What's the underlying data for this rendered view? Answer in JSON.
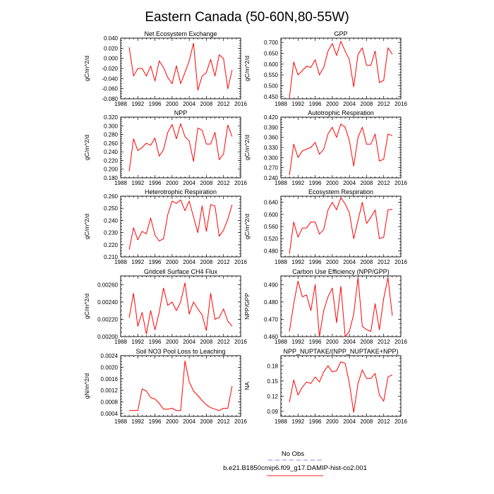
{
  "title": "Eastern Canada (50-60N,80-55W)",
  "legend": {
    "items": [
      {
        "label": "No Obs",
        "color": "#9aa0f0",
        "dash": true
      },
      {
        "label": "b.e21.B1850cmip6.f09_g17.DAMIP-hist-co2.001",
        "color": "#f05050",
        "dash": false
      }
    ]
  },
  "colors": {
    "series": "#ff0000",
    "axis": "#000000"
  },
  "chart_data": [
    {
      "type": "line",
      "title": "Net Ecosystem Exchange",
      "ylabel": "gC/m^2/d",
      "xlim": [
        1988,
        2016
      ],
      "xticks": [
        "1988",
        "1992",
        "1996",
        "2000",
        "2004",
        "2008",
        "2012",
        "2016"
      ],
      "ylim": [
        -0.08,
        0.04
      ],
      "yticks": [
        "-0.080",
        "-0.060",
        "-0.040",
        "-0.020",
        "0.000",
        "0.020",
        "0.040"
      ],
      "x": [
        1990,
        1991,
        1992,
        1993,
        1994,
        1995,
        1996,
        1997,
        1998,
        1999,
        2000,
        2001,
        2002,
        2003,
        2004,
        2005,
        2006,
        2007,
        2008,
        2009,
        2010,
        2011,
        2012,
        2013,
        2014
      ],
      "values": [
        0.022,
        -0.035,
        -0.02,
        -0.02,
        -0.035,
        -0.015,
        -0.045,
        -0.005,
        -0.018,
        -0.038,
        -0.05,
        -0.015,
        -0.05,
        -0.028,
        -0.005,
        0.03,
        -0.063,
        -0.035,
        -0.028,
        -0.002,
        -0.035,
        0.007,
        0.0,
        -0.06,
        -0.023
      ]
    },
    {
      "type": "line",
      "title": "GPP",
      "ylabel": "gC/m^2/d",
      "xlim": [
        1988,
        2016
      ],
      "xticks": [
        "1988",
        "1992",
        "1996",
        "2000",
        "2004",
        "2008",
        "2012",
        "2016"
      ],
      "ylim": [
        0.44,
        0.72
      ],
      "yticks": [
        "0.450",
        "0.500",
        "0.550",
        "0.600",
        "0.650",
        "0.700"
      ],
      "x": [
        1990,
        1991,
        1992,
        1993,
        1994,
        1995,
        1996,
        1997,
        1998,
        1999,
        2000,
        2001,
        2002,
        2003,
        2004,
        2005,
        2006,
        2007,
        2008,
        2009,
        2010,
        2011,
        2012,
        2013,
        2014
      ],
      "values": [
        0.445,
        0.61,
        0.55,
        0.57,
        0.59,
        0.585,
        0.62,
        0.55,
        0.585,
        0.66,
        0.695,
        0.64,
        0.705,
        0.66,
        0.62,
        0.495,
        0.645,
        0.675,
        0.595,
        0.595,
        0.66,
        0.515,
        0.525,
        0.675,
        0.645
      ]
    },
    {
      "type": "line",
      "title": "NPP",
      "ylabel": "gC/m^2/d",
      "xlim": [
        1988,
        2016
      ],
      "xticks": [
        "1988",
        "1992",
        "1996",
        "2000",
        "2004",
        "2008",
        "2012",
        "2016"
      ],
      "ylim": [
        0.18,
        0.32
      ],
      "yticks": [
        "0.180",
        "0.200",
        "0.220",
        "0.240",
        "0.260",
        "0.280",
        "0.300",
        "0.320"
      ],
      "x": [
        1990,
        1991,
        1992,
        1993,
        1994,
        1995,
        1996,
        1997,
        1998,
        1999,
        2000,
        2001,
        2002,
        2003,
        2004,
        2005,
        2006,
        2007,
        2008,
        2009,
        2010,
        2011,
        2012,
        2013,
        2014
      ],
      "values": [
        0.195,
        0.27,
        0.243,
        0.25,
        0.26,
        0.255,
        0.272,
        0.23,
        0.245,
        0.285,
        0.303,
        0.27,
        0.305,
        0.275,
        0.265,
        0.218,
        0.295,
        0.29,
        0.258,
        0.258,
        0.285,
        0.222,
        0.235,
        0.302,
        0.275
      ]
    },
    {
      "type": "line",
      "title": "Autotrophic Respiration",
      "ylabel": "gC/m^2/d",
      "xlim": [
        1988,
        2016
      ],
      "xticks": [
        "1988",
        "1992",
        "1996",
        "2000",
        "2004",
        "2008",
        "2012",
        "2016"
      ],
      "ylim": [
        0.24,
        0.42
      ],
      "yticks": [
        "0.240",
        "0.270",
        "0.300",
        "0.330",
        "0.360",
        "0.390",
        "0.420"
      ],
      "x": [
        1990,
        1991,
        1992,
        1993,
        1994,
        1995,
        1996,
        1997,
        1998,
        1999,
        2000,
        2001,
        2002,
        2003,
        2004,
        2005,
        2006,
        2007,
        2008,
        2009,
        2010,
        2011,
        2012,
        2013,
        2014
      ],
      "values": [
        0.248,
        0.34,
        0.3,
        0.32,
        0.325,
        0.33,
        0.345,
        0.31,
        0.325,
        0.37,
        0.39,
        0.36,
        0.4,
        0.39,
        0.35,
        0.275,
        0.36,
        0.39,
        0.34,
        0.34,
        0.37,
        0.29,
        0.295,
        0.37,
        0.365
      ]
    },
    {
      "type": "line",
      "title": "Heterotrophic Respiration",
      "ylabel": "gC/m^2/d",
      "xlim": [
        1988,
        2016
      ],
      "xticks": [
        "1988",
        "1992",
        "1996",
        "2000",
        "2004",
        "2008",
        "2012",
        "2016"
      ],
      "ylim": [
        0.21,
        0.26
      ],
      "yticks": [
        "0.210",
        "0.220",
        "0.230",
        "0.240",
        "0.250",
        "0.260"
      ],
      "x": [
        1990,
        1991,
        1992,
        1993,
        1994,
        1995,
        1996,
        1997,
        1998,
        1999,
        2000,
        2001,
        2002,
        2003,
        2004,
        2005,
        2006,
        2007,
        2008,
        2009,
        2010,
        2011,
        2012,
        2013,
        2014
      ],
      "values": [
        0.216,
        0.234,
        0.224,
        0.231,
        0.229,
        0.242,
        0.228,
        0.223,
        0.225,
        0.245,
        0.256,
        0.254,
        0.257,
        0.248,
        0.256,
        0.243,
        0.23,
        0.252,
        0.231,
        0.253,
        0.252,
        0.227,
        0.232,
        0.241,
        0.253
      ]
    },
    {
      "type": "line",
      "title": "Ecosystem Respiration",
      "ylabel": "gC/m^2/d",
      "xlim": [
        1988,
        2016
      ],
      "xticks": [
        "1988",
        "1992",
        "1996",
        "2000",
        "2004",
        "2008",
        "2012",
        "2016"
      ],
      "ylim": [
        0.46,
        0.66
      ],
      "yticks": [
        "0.480",
        "0.520",
        "0.560",
        "0.600",
        "0.640"
      ],
      "x": [
        1990,
        1991,
        1992,
        1993,
        1994,
        1995,
        1996,
        1997,
        1998,
        1999,
        2000,
        2001,
        2002,
        2003,
        2004,
        2005,
        2006,
        2007,
        2008,
        2009,
        2010,
        2011,
        2012,
        2013,
        2014
      ],
      "values": [
        0.47,
        0.575,
        0.525,
        0.555,
        0.555,
        0.575,
        0.575,
        0.535,
        0.55,
        0.615,
        0.64,
        0.615,
        0.655,
        0.635,
        0.605,
        0.52,
        0.58,
        0.64,
        0.57,
        0.59,
        0.615,
        0.52,
        0.525,
        0.615,
        0.617
      ]
    },
    {
      "type": "line",
      "title": "Gridcell Surface CH4 Flux",
      "ylabel": "gC/m^2/d",
      "xlim": [
        1988,
        2016
      ],
      "xticks": [
        "1988",
        "1992",
        "1996",
        "2000",
        "2004",
        "2008",
        "2012",
        "2016"
      ],
      "ylim": [
        0.002,
        0.0027
      ],
      "yticks": [
        "0.00200",
        "0.00220",
        "0.00240",
        "0.00260"
      ],
      "x": [
        1990,
        1991,
        1992,
        1993,
        1994,
        1995,
        1996,
        1997,
        1998,
        1999,
        2000,
        2001,
        2002,
        2003,
        2004,
        2005,
        2006,
        2007,
        2008,
        2009,
        2010,
        2011,
        2012,
        2013,
        2014
      ],
      "values": [
        0.00222,
        0.0025,
        0.00212,
        0.00228,
        0.00203,
        0.0023,
        0.00208,
        0.00228,
        0.00256,
        0.00236,
        0.0024,
        0.0023,
        0.0024,
        0.00262,
        0.00226,
        0.0024,
        0.00232,
        0.00225,
        0.00207,
        0.0025,
        0.0022,
        0.00222,
        0.00232,
        0.00218,
        0.00212
      ]
    },
    {
      "type": "line",
      "title": "Carbon Use Efficiency (NPP/GPP)",
      "ylabel": "NPP/GPP",
      "xlim": [
        1988,
        2016
      ],
      "xticks": [
        "1988",
        "1992",
        "1996",
        "2000",
        "2004",
        "2008",
        "2012",
        "2016"
      ],
      "ylim": [
        0.46,
        0.495
      ],
      "yticks": [
        "0.460",
        "0.470",
        "0.480",
        "0.490"
      ],
      "x": [
        1990,
        1991,
        1992,
        1993,
        1994,
        1995,
        1996,
        1997,
        1998,
        1999,
        2000,
        2001,
        2002,
        2003,
        2004,
        2005,
        2006,
        2007,
        2008,
        2009,
        2010,
        2011,
        2012,
        2013,
        2014
      ],
      "values": [
        0.463,
        0.479,
        0.492,
        0.483,
        0.484,
        0.475,
        0.49,
        0.46,
        0.475,
        0.483,
        0.488,
        0.468,
        0.489,
        0.46,
        0.463,
        0.473,
        0.494,
        0.466,
        0.464,
        0.463,
        0.479,
        0.464,
        0.482,
        0.494,
        0.472
      ]
    },
    {
      "type": "line",
      "title": "Soil NO3 Pool Loss to Leaching",
      "ylabel": "gN/m^2/d",
      "xlim": [
        1988,
        2016
      ],
      "xticks": [
        "1988",
        "1992",
        "1996",
        "2000",
        "2004",
        "2008",
        "2012",
        "2016"
      ],
      "ylim": [
        0.0003,
        0.0024
      ],
      "yticks": [
        "0.0004",
        "0.0008",
        "0.0012",
        "0.0016",
        "0.0020",
        "0.0024"
      ],
      "x": [
        1990,
        1991,
        1992,
        1993,
        1994,
        1995,
        1996,
        1997,
        1998,
        1999,
        2000,
        2001,
        2002,
        2003,
        2004,
        2005,
        2006,
        2007,
        2008,
        2009,
        2010,
        2011,
        2012,
        2013,
        2014
      ],
      "values": [
        0.0005,
        0.0005,
        0.0005,
        0.00125,
        0.00118,
        0.00095,
        0.0009,
        0.00075,
        0.00055,
        0.00055,
        0.00058,
        0.0005,
        0.0005,
        0.00222,
        0.0015,
        0.00118,
        0.00102,
        0.00085,
        0.0007,
        0.0006,
        0.00055,
        0.0005,
        0.00058,
        0.00058,
        0.00135
      ]
    },
    {
      "type": "line",
      "title": "NPP_NUPTAKE/(NPP_NUPTAKE+NPP)",
      "ylabel": "NA",
      "xlim": [
        1988,
        2016
      ],
      "xticks": [
        "1988",
        "1992",
        "1996",
        "2000",
        "2004",
        "2008",
        "2012",
        "2016"
      ],
      "ylim": [
        0.08,
        0.2
      ],
      "yticks": [
        "0.09",
        "0.12",
        "0.15",
        "0.18"
      ],
      "x": [
        1990,
        1991,
        1992,
        1993,
        1994,
        1995,
        1996,
        1997,
        1998,
        1999,
        2000,
        2001,
        2002,
        2003,
        2004,
        2005,
        2006,
        2007,
        2008,
        2009,
        2010,
        2011,
        2012,
        2013,
        2014
      ],
      "values": [
        0.108,
        0.152,
        0.122,
        0.138,
        0.148,
        0.145,
        0.158,
        0.148,
        0.168,
        0.18,
        0.168,
        0.17,
        0.188,
        0.185,
        0.145,
        0.088,
        0.145,
        0.172,
        0.155,
        0.155,
        0.165,
        0.122,
        0.11,
        0.158,
        0.162
      ]
    }
  ]
}
